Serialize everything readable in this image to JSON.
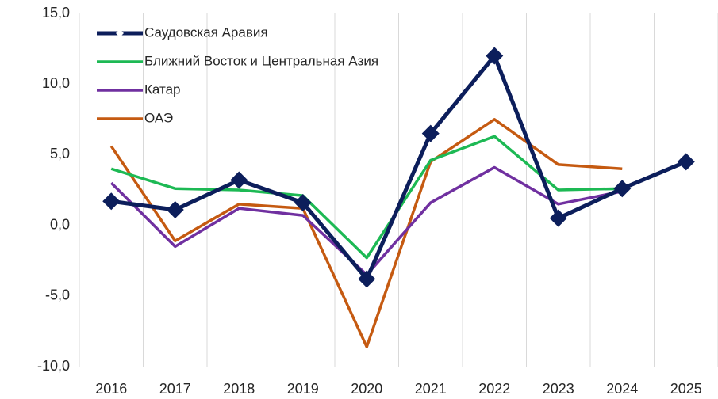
{
  "chart_data": {
    "type": "line",
    "categories": [
      "2016",
      "2017",
      "2018",
      "2019",
      "2020",
      "2021",
      "2022",
      "2023",
      "2024",
      "2025"
    ],
    "series": [
      {
        "name": "Саудовская Аравия",
        "color": "#0c1e5b",
        "marker": "diamond",
        "values": [
          1.7,
          1.1,
          3.2,
          1.6,
          -3.8,
          6.5,
          12.0,
          0.5,
          2.6,
          4.5
        ]
      },
      {
        "name": "Ближний Восток и Центральная Азия",
        "color": "#1db954",
        "values": [
          4.0,
          2.6,
          2.5,
          2.1,
          -2.3,
          4.6,
          6.3,
          2.5,
          2.6,
          null
        ]
      },
      {
        "name": "Катар",
        "color": "#7030a0",
        "values": [
          3.0,
          -1.5,
          1.2,
          0.7,
          -3.5,
          1.6,
          4.1,
          1.5,
          2.4,
          null
        ]
      },
      {
        "name": "ОАЭ",
        "color": "#c55a11",
        "values": [
          5.6,
          -1.1,
          1.5,
          1.2,
          -8.6,
          4.5,
          7.5,
          4.3,
          4.0,
          null
        ]
      }
    ],
    "ylim": [
      -10,
      15
    ],
    "yticks": [
      {
        "value": -10,
        "label": "-10,0"
      },
      {
        "value": -5,
        "label": "-5,0"
      },
      {
        "value": 0,
        "label": "0,0"
      },
      {
        "value": 5,
        "label": "5,0"
      },
      {
        "value": 10,
        "label": "10,0"
      },
      {
        "value": 15,
        "label": "15,0"
      }
    ],
    "legend": "top-left"
  }
}
